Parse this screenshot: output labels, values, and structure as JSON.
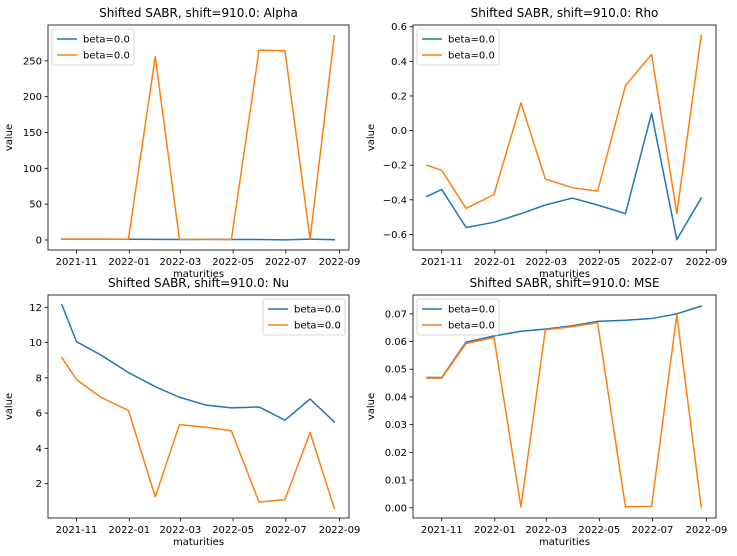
{
  "colors": {
    "series_a": "#1f77b4",
    "series_b": "#ff7f0e",
    "axes": "#000000",
    "background": "#ffffff"
  },
  "x_dates": [
    "2021-10-15",
    "2021-11-01",
    "2021-11-29",
    "2021-12-31",
    "2022-01-31",
    "2022-02-28",
    "2022-03-31",
    "2022-04-29",
    "2022-05-31",
    "2022-06-30",
    "2022-07-29",
    "2022-08-26"
  ],
  "chart_data": [
    {
      "type": "line",
      "title": "Shifted SABR, shift=910.0: Alpha",
      "xlabel": "maturities",
      "ylabel": "value",
      "legend_position": "top-left",
      "xlim": [
        "2021-09-29",
        "2022-09-12"
      ],
      "ylim": [
        -14,
        300
      ],
      "x_ticks": [
        "2021-11-01",
        "2022-01-01",
        "2022-03-01",
        "2022-05-01",
        "2022-07-01",
        "2022-09-01"
      ],
      "x_tick_labels": [
        "2021-11",
        "2022-01",
        "2022-03",
        "2022-05",
        "2022-07",
        "2022-09"
      ],
      "y_ticks": [
        0,
        50,
        100,
        150,
        200,
        250
      ],
      "y_tick_labels": [
        "0",
        "50",
        "100",
        "150",
        "200",
        "250"
      ],
      "series": [
        {
          "name": "beta=0.0",
          "values": [
            1.2,
            1.2,
            1.1,
            1.0,
            0.9,
            0.7,
            0.8,
            0.6,
            0.7,
            0.2,
            1.2,
            0.4
          ]
        },
        {
          "name": "beta=0.0",
          "values": [
            1.2,
            1.2,
            1.1,
            1.0,
            256,
            0.7,
            0.8,
            0.6,
            265,
            264,
            1.2,
            285
          ]
        }
      ]
    },
    {
      "type": "line",
      "title": "Shifted SABR, shift=910.0: Rho",
      "xlabel": "maturities",
      "ylabel": "value",
      "legend_position": "top-left",
      "xlim": [
        "2021-09-29",
        "2022-09-12"
      ],
      "ylim": [
        -0.69,
        0.61
      ],
      "x_ticks": [
        "2021-11-01",
        "2022-01-01",
        "2022-03-01",
        "2022-05-01",
        "2022-07-01",
        "2022-09-01"
      ],
      "x_tick_labels": [
        "2021-11",
        "2022-01",
        "2022-03",
        "2022-05",
        "2022-07",
        "2022-09"
      ],
      "y_ticks": [
        -0.6,
        -0.4,
        -0.2,
        0.0,
        0.2,
        0.4,
        0.6
      ],
      "y_tick_labels": [
        "−0.6",
        "−0.4",
        "−0.2",
        "0.0",
        "0.2",
        "0.4",
        "0.6"
      ],
      "series": [
        {
          "name": "beta=0.0",
          "values": [
            -0.38,
            -0.34,
            -0.56,
            -0.53,
            -0.48,
            -0.43,
            -0.39,
            -0.43,
            -0.48,
            0.1,
            -0.63,
            -0.39
          ]
        },
        {
          "name": "beta=0.0",
          "values": [
            -0.2,
            -0.23,
            -0.45,
            -0.37,
            0.16,
            -0.28,
            -0.33,
            -0.35,
            0.26,
            0.44,
            -0.48,
            0.55
          ]
        }
      ]
    },
    {
      "type": "line",
      "title": "Shifted SABR, shift=910.0: Nu",
      "xlabel": "maturities",
      "ylabel": "value",
      "legend_position": "top-right",
      "xlim": [
        "2021-09-29",
        "2022-09-12"
      ],
      "ylim": [
        0.05,
        12.7
      ],
      "x_ticks": [
        "2021-11-01",
        "2022-01-01",
        "2022-03-01",
        "2022-05-01",
        "2022-07-01",
        "2022-09-01"
      ],
      "x_tick_labels": [
        "2021-11",
        "2022-01",
        "2022-03",
        "2022-05",
        "2022-07",
        "2022-09"
      ],
      "y_ticks": [
        2,
        4,
        6,
        8,
        10,
        12
      ],
      "y_tick_labels": [
        "2",
        "4",
        "6",
        "8",
        "10",
        "12"
      ],
      "series": [
        {
          "name": "beta=0.0",
          "values": [
            12.15,
            10.05,
            9.3,
            8.3,
            7.5,
            6.9,
            6.45,
            6.3,
            6.35,
            5.6,
            6.8,
            5.5
          ]
        },
        {
          "name": "beta=0.0",
          "values": [
            9.15,
            7.9,
            6.9,
            6.15,
            1.25,
            5.35,
            5.2,
            5.0,
            0.95,
            1.1,
            4.9,
            0.6
          ]
        }
      ]
    },
    {
      "type": "line",
      "title": "Shifted SABR, shift=910.0: MSE",
      "xlabel": "maturities",
      "ylabel": "value",
      "legend_position": "top-left",
      "xlim": [
        "2021-09-29",
        "2022-09-12"
      ],
      "ylim": [
        -0.0037,
        0.0768
      ],
      "x_ticks": [
        "2021-11-01",
        "2022-01-01",
        "2022-03-01",
        "2022-05-01",
        "2022-07-01",
        "2022-09-01"
      ],
      "x_tick_labels": [
        "2021-11",
        "2022-01",
        "2022-03",
        "2022-05",
        "2022-07",
        "2022-09"
      ],
      "y_ticks": [
        0.0,
        0.01,
        0.02,
        0.03,
        0.04,
        0.05,
        0.06,
        0.07
      ],
      "y_tick_labels": [
        "0.00",
        "0.01",
        "0.02",
        "0.03",
        "0.04",
        "0.05",
        "0.06",
        "0.07"
      ],
      "series": [
        {
          "name": "beta=0.0",
          "values": [
            0.047,
            0.047,
            0.0598,
            0.062,
            0.0637,
            0.0645,
            0.0657,
            0.0673,
            0.0677,
            0.0683,
            0.07,
            0.0728
          ]
        },
        {
          "name": "beta=0.0",
          "values": [
            0.0468,
            0.0468,
            0.0593,
            0.0615,
            0.0003,
            0.0642,
            0.0654,
            0.0668,
            0.0004,
            0.0005,
            0.0697,
            0.0003
          ]
        }
      ]
    }
  ]
}
